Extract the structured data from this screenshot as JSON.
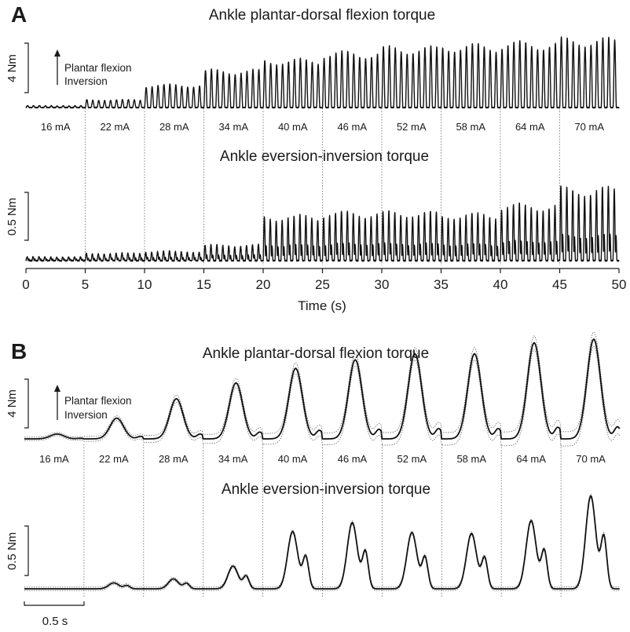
{
  "chart_data": [
    {
      "panel": "A",
      "type": "line",
      "xlabel": "Time (s)",
      "xlim": [
        0,
        50
      ],
      "xticks": [
        "0",
        "5",
        "10",
        "15",
        "20",
        "25",
        "30",
        "35",
        "40",
        "45",
        "50"
      ],
      "stimulation_period_s": 0.5,
      "segments": [
        "16 mA",
        "22 mA",
        "28 mA",
        "34 mA",
        "40 mA",
        "46 mA",
        "52 mA",
        "58 mA",
        "64 mA",
        "70 mA"
      ],
      "direction_note": [
        "Plantar flexion",
        "Inversion"
      ],
      "traces": [
        {
          "title": "Ankle plantar-dorsal flexion torque",
          "scale_bar": "4 Nm",
          "scale_bar_value": 4,
          "segment_peaks": [
            0.15,
            0.65,
            1.9,
            3.1,
            4.0,
            4.6,
            5.0,
            5.2,
            5.4,
            5.7
          ]
        },
        {
          "title": "Ankle eversion-inversion torque",
          "scale_bar": "0.5 Nm",
          "scale_bar_value": 0.5,
          "segment_peaks": [
            0.04,
            0.08,
            0.1,
            0.17,
            0.48,
            0.52,
            0.52,
            0.5,
            0.6,
            0.78
          ]
        }
      ]
    },
    {
      "panel": "B",
      "type": "line",
      "time_scale_bar": "0.5 s",
      "segments": [
        "16 mA",
        "22 mA",
        "28 mA",
        "34 mA",
        "40 mA",
        "46 mA",
        "52 mA",
        "58 mA",
        "64 mA",
        "70 mA"
      ],
      "direction_note": [
        "Plantar flexion",
        "Inversion"
      ],
      "traces": [
        {
          "title": "Ankle plantar-dorsal flexion torque",
          "scale_bar": "4 Nm",
          "scale_bar_value": 4,
          "segment_peaks": [
            0.4,
            1.7,
            3.3,
            4.6,
            5.8,
            6.5,
            7.0,
            7.0,
            7.9,
            8.2
          ]
        },
        {
          "title": "Ankle eversion-inversion torque",
          "scale_bar": "0.5 Nm",
          "scale_bar_value": 0.5,
          "segment_peaks": [
            0.0,
            0.06,
            0.1,
            0.23,
            0.58,
            0.67,
            0.57,
            0.56,
            0.69,
            0.94
          ]
        }
      ]
    }
  ]
}
